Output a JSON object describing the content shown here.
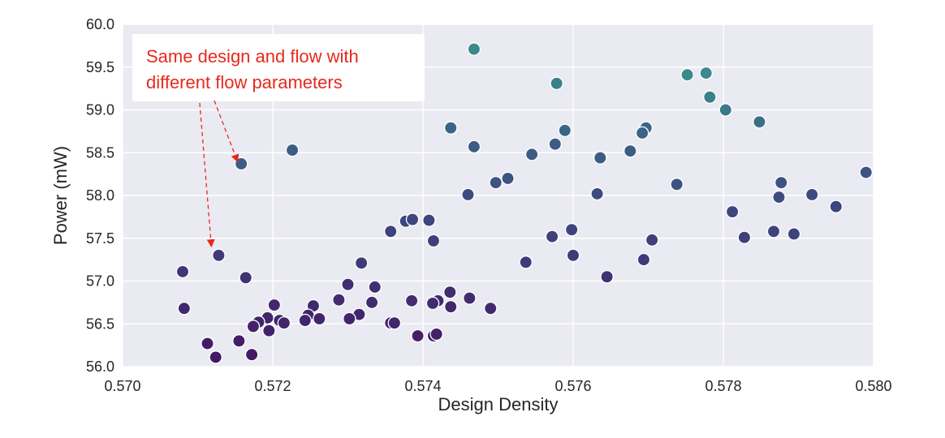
{
  "chart_data": {
    "type": "scatter",
    "title": "",
    "xlabel": "Design Density",
    "ylabel": "Power (mW)",
    "xlim": [
      0.57,
      0.58
    ],
    "ylim": [
      56.0,
      60.0
    ],
    "xticks": [
      "0.570",
      "0.572",
      "0.574",
      "0.576",
      "0.578",
      "0.580"
    ],
    "yticks": [
      "56.0",
      "56.5",
      "57.0",
      "57.5",
      "58.0",
      "58.5",
      "59.0",
      "59.5",
      "60.0"
    ],
    "grid": true,
    "background": "#eaeaf2",
    "marker_edge": "#ffffff",
    "colormap": "viridis (purple = lower power, teal = higher power)",
    "points": [
      {
        "x": 0.57468,
        "y": 59.71,
        "color": "#3b8a8c"
      },
      {
        "x": 0.57578,
        "y": 59.31,
        "color": "#3a8089"
      },
      {
        "x": 0.57752,
        "y": 59.41,
        "color": "#3b8a8c"
      },
      {
        "x": 0.57777,
        "y": 59.43,
        "color": "#3b8a8c"
      },
      {
        "x": 0.57782,
        "y": 59.15,
        "color": "#3a8089"
      },
      {
        "x": 0.57803,
        "y": 59.0,
        "color": "#3a7a88"
      },
      {
        "x": 0.57848,
        "y": 58.86,
        "color": "#3a7085"
      },
      {
        "x": 0.57437,
        "y": 58.79,
        "color": "#3b6585"
      },
      {
        "x": 0.57589,
        "y": 58.76,
        "color": "#3b6585"
      },
      {
        "x": 0.57697,
        "y": 58.79,
        "color": "#3b6585"
      },
      {
        "x": 0.57692,
        "y": 58.73,
        "color": "#3b6585"
      },
      {
        "x": 0.57468,
        "y": 58.57,
        "color": "#3c5c84"
      },
      {
        "x": 0.57576,
        "y": 58.6,
        "color": "#3c5c84"
      },
      {
        "x": 0.57676,
        "y": 58.52,
        "color": "#3c5c84"
      },
      {
        "x": 0.57226,
        "y": 58.53,
        "color": "#3c5c84"
      },
      {
        "x": 0.57545,
        "y": 58.48,
        "color": "#3c5c84"
      },
      {
        "x": 0.57636,
        "y": 58.44,
        "color": "#3c5c84"
      },
      {
        "x": 0.57158,
        "y": 58.37,
        "color": "#3c5c84"
      },
      {
        "x": 0.5799,
        "y": 58.27,
        "color": "#3d5482"
      },
      {
        "x": 0.57513,
        "y": 58.2,
        "color": "#3d5482"
      },
      {
        "x": 0.57497,
        "y": 58.15,
        "color": "#3d5482"
      },
      {
        "x": 0.57738,
        "y": 58.13,
        "color": "#3d5482"
      },
      {
        "x": 0.57877,
        "y": 58.15,
        "color": "#3d5482"
      },
      {
        "x": 0.5746,
        "y": 58.01,
        "color": "#3d4c80"
      },
      {
        "x": 0.57632,
        "y": 58.02,
        "color": "#3d4c80"
      },
      {
        "x": 0.57874,
        "y": 57.98,
        "color": "#3d4c80"
      },
      {
        "x": 0.57918,
        "y": 58.01,
        "color": "#3d4c80"
      },
      {
        "x": 0.5795,
        "y": 57.87,
        "color": "#3e467e"
      },
      {
        "x": 0.57812,
        "y": 57.81,
        "color": "#3e467e"
      },
      {
        "x": 0.57377,
        "y": 57.7,
        "color": "#3e467e"
      },
      {
        "x": 0.57386,
        "y": 57.72,
        "color": "#3e467e"
      },
      {
        "x": 0.57408,
        "y": 57.71,
        "color": "#3e467e"
      },
      {
        "x": 0.57598,
        "y": 57.6,
        "color": "#3e437c"
      },
      {
        "x": 0.57357,
        "y": 57.58,
        "color": "#3e437c"
      },
      {
        "x": 0.57867,
        "y": 57.58,
        "color": "#3e437c"
      },
      {
        "x": 0.57894,
        "y": 57.55,
        "color": "#3e437c"
      },
      {
        "x": 0.57572,
        "y": 57.52,
        "color": "#3f3f7a"
      },
      {
        "x": 0.57828,
        "y": 57.51,
        "color": "#3f3f7a"
      },
      {
        "x": 0.57414,
        "y": 57.47,
        "color": "#3f3f7a"
      },
      {
        "x": 0.57705,
        "y": 57.48,
        "color": "#3f3f7a"
      },
      {
        "x": 0.576,
        "y": 57.3,
        "color": "#403a78"
      },
      {
        "x": 0.57128,
        "y": 57.3,
        "color": "#403a78"
      },
      {
        "x": 0.57694,
        "y": 57.25,
        "color": "#403a78"
      },
      {
        "x": 0.57537,
        "y": 57.22,
        "color": "#403a78"
      },
      {
        "x": 0.57318,
        "y": 57.21,
        "color": "#403a78"
      },
      {
        "x": 0.5708,
        "y": 57.11,
        "color": "#403576"
      },
      {
        "x": 0.57164,
        "y": 57.04,
        "color": "#413274"
      },
      {
        "x": 0.57645,
        "y": 57.05,
        "color": "#413274"
      },
      {
        "x": 0.573,
        "y": 56.96,
        "color": "#412f72"
      },
      {
        "x": 0.57336,
        "y": 56.93,
        "color": "#412f72"
      },
      {
        "x": 0.57436,
        "y": 56.87,
        "color": "#412c70"
      },
      {
        "x": 0.57462,
        "y": 56.8,
        "color": "#412c70"
      },
      {
        "x": 0.57288,
        "y": 56.78,
        "color": "#412c70"
      },
      {
        "x": 0.57385,
        "y": 56.77,
        "color": "#412c70"
      },
      {
        "x": 0.57332,
        "y": 56.75,
        "color": "#412c70"
      },
      {
        "x": 0.5742,
        "y": 56.77,
        "color": "#412c70"
      },
      {
        "x": 0.57413,
        "y": 56.74,
        "color": "#412c70"
      },
      {
        "x": 0.57202,
        "y": 56.72,
        "color": "#42296e"
      },
      {
        "x": 0.57254,
        "y": 56.71,
        "color": "#42296e"
      },
      {
        "x": 0.57437,
        "y": 56.7,
        "color": "#42296e"
      },
      {
        "x": 0.57082,
        "y": 56.68,
        "color": "#42296e"
      },
      {
        "x": 0.5749,
        "y": 56.68,
        "color": "#42296e"
      },
      {
        "x": 0.57315,
        "y": 56.61,
        "color": "#42266c"
      },
      {
        "x": 0.57247,
        "y": 56.6,
        "color": "#42266c"
      },
      {
        "x": 0.57193,
        "y": 56.57,
        "color": "#42266c"
      },
      {
        "x": 0.57302,
        "y": 56.56,
        "color": "#42266c"
      },
      {
        "x": 0.57262,
        "y": 56.56,
        "color": "#42266c"
      },
      {
        "x": 0.57243,
        "y": 56.54,
        "color": "#42266c"
      },
      {
        "x": 0.57209,
        "y": 56.54,
        "color": "#42266c"
      },
      {
        "x": 0.57181,
        "y": 56.52,
        "color": "#42266c"
      },
      {
        "x": 0.57215,
        "y": 56.51,
        "color": "#42266c"
      },
      {
        "x": 0.57357,
        "y": 56.51,
        "color": "#42266c"
      },
      {
        "x": 0.57362,
        "y": 56.51,
        "color": "#42266c"
      },
      {
        "x": 0.57174,
        "y": 56.47,
        "color": "#42236a"
      },
      {
        "x": 0.57195,
        "y": 56.42,
        "color": "#42236a"
      },
      {
        "x": 0.57393,
        "y": 56.36,
        "color": "#432068"
      },
      {
        "x": 0.57414,
        "y": 56.36,
        "color": "#432068"
      },
      {
        "x": 0.57418,
        "y": 56.38,
        "color": "#432068"
      },
      {
        "x": 0.57113,
        "y": 56.27,
        "color": "#431d66"
      },
      {
        "x": 0.57155,
        "y": 56.3,
        "color": "#431d66"
      },
      {
        "x": 0.57124,
        "y": 56.11,
        "color": "#441a64"
      },
      {
        "x": 0.57172,
        "y": 56.14,
        "color": "#441a64"
      }
    ],
    "annotation": {
      "lines": [
        "Same design and flow with",
        "different flow parameters"
      ],
      "color": "#e8281c",
      "box_fill": "#ffffff",
      "targets": [
        {
          "x": 0.57152,
          "y": 58.42
        },
        {
          "x": 0.57118,
          "y": 57.43
        }
      ]
    }
  }
}
